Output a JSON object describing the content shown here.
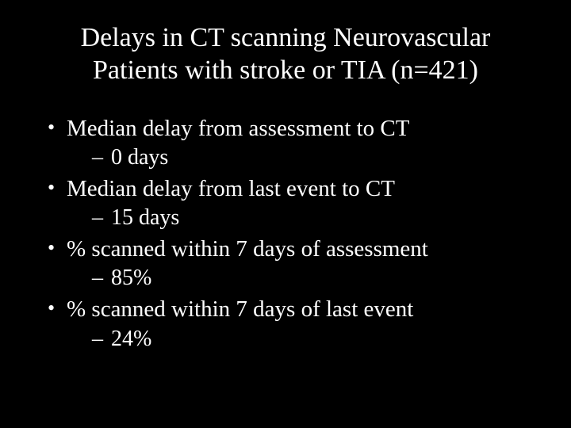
{
  "slide": {
    "title": "Delays in CT scanning Neurovascular Patients with stroke or TIA (n=421)",
    "bullets": [
      {
        "label": "Median delay from assessment to CT",
        "sub": "0 days"
      },
      {
        "label": "Median delay from last event to CT",
        "sub": "15 days"
      },
      {
        "label": "% scanned within 7 days of assessment",
        "sub": "85%"
      },
      {
        "label": "% scanned within 7 days of last event",
        "sub": "24%"
      }
    ],
    "colors": {
      "background": "#000000",
      "text": "#ffffff"
    },
    "typography": {
      "family": "Times New Roman",
      "title_fontsize_pt": 34,
      "body_fontsize_pt": 29
    }
  }
}
